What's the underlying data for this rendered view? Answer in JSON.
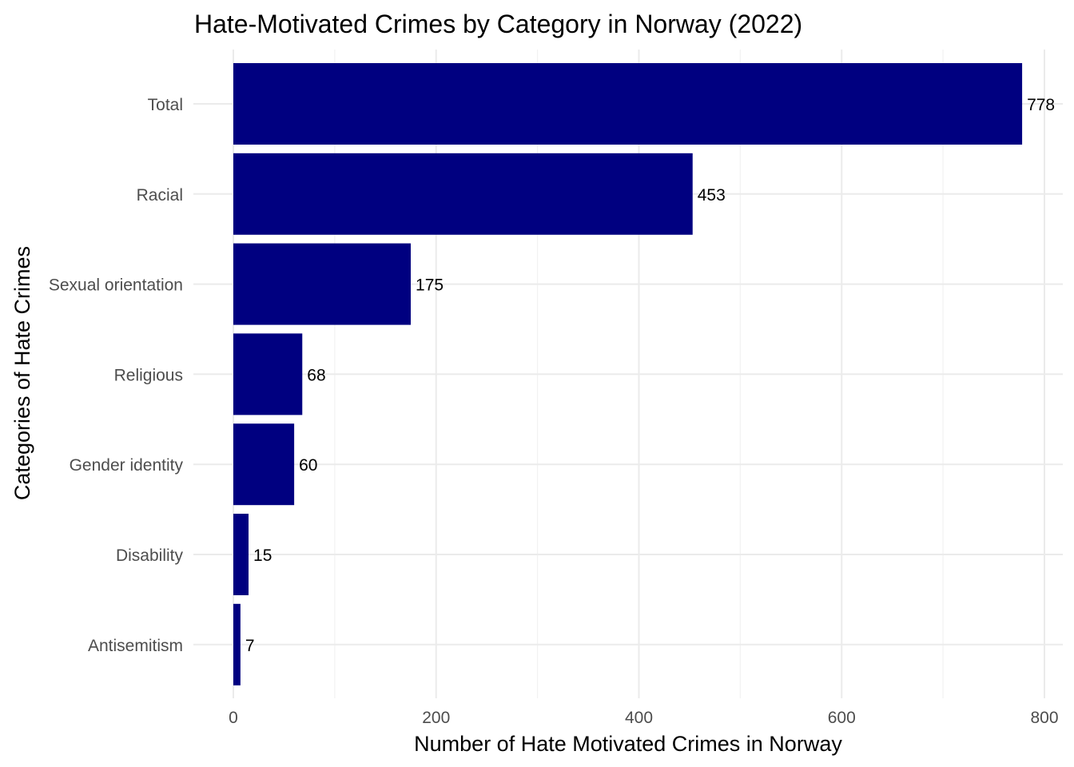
{
  "chart_data": {
    "type": "bar",
    "orientation": "horizontal",
    "title": "Hate-Motivated Crimes by Category in Norway (2022)",
    "xlabel": "Number of Hate Motivated Crimes in Norway",
    "ylabel": "Categories of Hate Crimes",
    "categories": [
      "Total",
      "Racial",
      "Sexual orientation",
      "Religious",
      "Gender identity",
      "Disability",
      "Antisemitism"
    ],
    "values": [
      778,
      453,
      175,
      68,
      60,
      15,
      7
    ],
    "data_labels": [
      "778",
      "453",
      "175",
      "68",
      "60",
      "15",
      "7"
    ],
    "xlim": [
      0,
      820
    ],
    "x_ticks": [
      0,
      200,
      400,
      600,
      800
    ],
    "x_tick_labels": [
      "0",
      "200",
      "400",
      "600",
      "800"
    ],
    "grid": true,
    "legend": "none",
    "bar_color": "#000080",
    "grid_color": "#ebebeb"
  }
}
